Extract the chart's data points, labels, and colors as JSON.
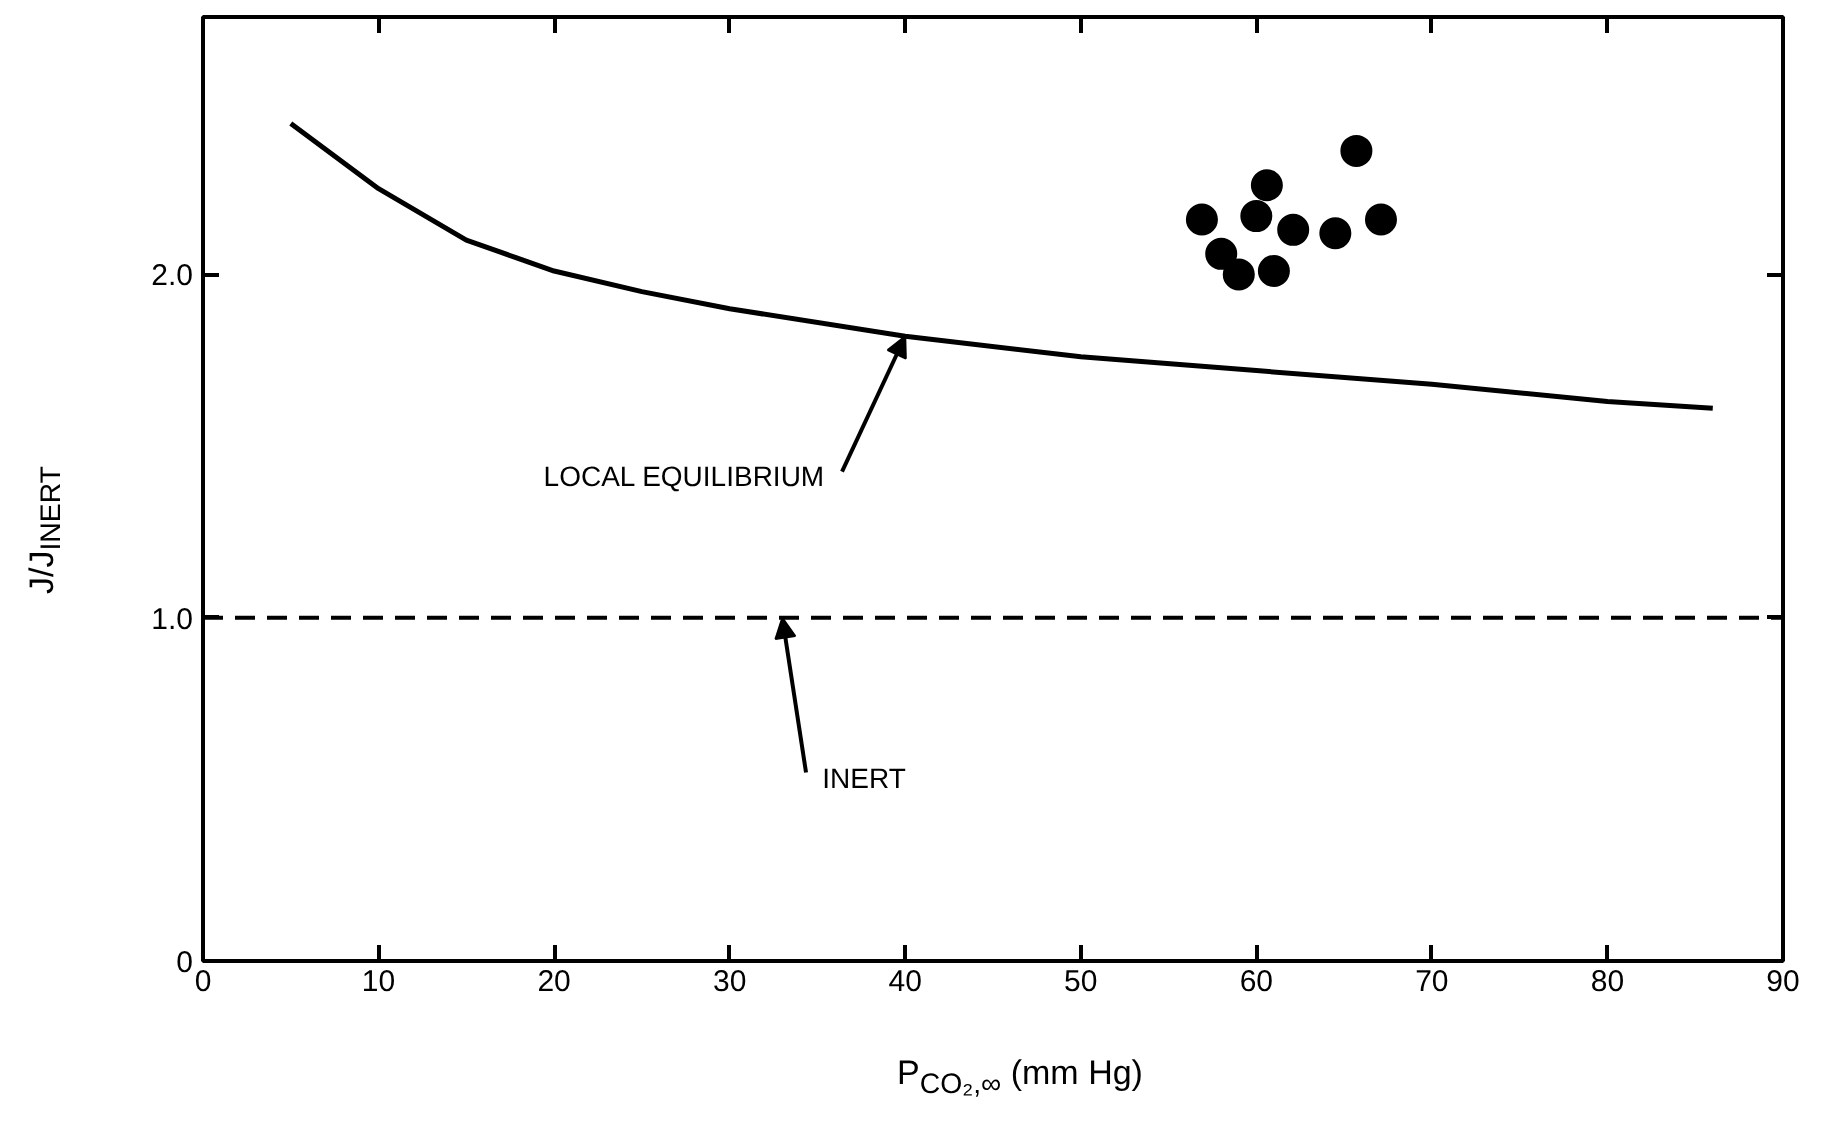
{
  "chart_data": {
    "type": "scatter",
    "xlabel": "P$_{CO₂,∞}$ (mm Hg)",
    "ylabel": "J/J$_{INERT}$",
    "xlim": [
      0,
      90
    ],
    "ylim": [
      0,
      2.75
    ],
    "xticks": [
      0,
      10,
      20,
      30,
      40,
      50,
      60,
      70,
      80,
      90
    ],
    "yticks": [
      0,
      {
        "value": 1.0,
        "label": "1.0"
      },
      {
        "value": 2.0,
        "label": "2.0"
      }
    ],
    "grid": false,
    "series": [
      {
        "type": "line",
        "color": "#000000",
        "marker": "none",
        "line_style": "solid",
        "x": [
          5,
          10,
          15,
          20,
          25,
          30,
          40,
          50,
          60,
          70,
          80,
          86
        ],
        "values": [
          2.44,
          2.25,
          2.1,
          2.01,
          1.95,
          1.9,
          1.82,
          1.76,
          1.72,
          1.68,
          1.63,
          1.61
        ]
      },
      {
        "type": "scatter",
        "color": "#000000",
        "marker": "circle",
        "x": [
          56.9,
          58.0,
          59.0,
          60.0,
          60.6,
          61.0,
          62.1,
          64.5,
          65.7,
          67.1
        ],
        "values": [
          2.16,
          2.06,
          2.0,
          2.17,
          2.26,
          2.01,
          2.13,
          2.12,
          2.36,
          2.16
        ]
      }
    ],
    "ref_lines": [
      {
        "axis": "y",
        "value": 1.0,
        "color": "#000000",
        "line_style": "dashed"
      }
    ],
    "annotations": [
      {
        "text": "LOCAL EQUILIBRIUM",
        "x": 40,
        "y": 1.82
      },
      {
        "text": "INERT",
        "x": 33,
        "y": 1.0
      }
    ]
  }
}
